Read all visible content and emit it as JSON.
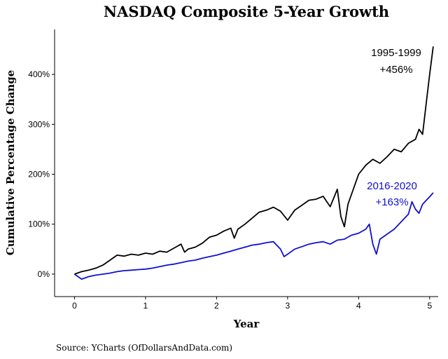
{
  "chart_data": {
    "type": "line",
    "title": "NASDAQ Composite 5-Year Growth",
    "xlabel": "Year",
    "ylabel": "Cumulative Percentage Change",
    "xlim": [
      -0.28,
      5.12
    ],
    "ylim": [
      -45,
      490
    ],
    "x_ticks": [
      0,
      1,
      2,
      3,
      4,
      5
    ],
    "x_tick_labels": [
      "0",
      "1",
      "2",
      "3",
      "4",
      "5"
    ],
    "y_ticks": [
      0,
      100,
      200,
      300,
      400
    ],
    "y_tick_labels": [
      "0%",
      "100%",
      "200%",
      "300%",
      "400%"
    ],
    "grid": false,
    "series": [
      {
        "name": "1995-1999",
        "color": "#000000",
        "x": [
          0,
          0.1,
          0.2,
          0.3,
          0.4,
          0.5,
          0.6,
          0.7,
          0.8,
          0.9,
          1.0,
          1.1,
          1.2,
          1.3,
          1.4,
          1.5,
          1.55,
          1.6,
          1.7,
          1.8,
          1.9,
          2.0,
          2.1,
          2.2,
          2.25,
          2.3,
          2.4,
          2.5,
          2.6,
          2.7,
          2.8,
          2.9,
          3.0,
          3.1,
          3.2,
          3.3,
          3.4,
          3.5,
          3.6,
          3.7,
          3.75,
          3.8,
          3.85,
          3.9,
          4.0,
          4.1,
          4.2,
          4.3,
          4.4,
          4.5,
          4.6,
          4.7,
          4.8,
          4.85,
          4.9,
          4.95,
          5.0,
          5.05
        ],
        "values": [
          0,
          5,
          8,
          12,
          18,
          28,
          38,
          36,
          40,
          38,
          42,
          40,
          46,
          44,
          52,
          60,
          44,
          50,
          54,
          62,
          74,
          78,
          86,
          92,
          72,
          90,
          100,
          112,
          124,
          128,
          134,
          126,
          108,
          128,
          138,
          148,
          150,
          156,
          135,
          170,
          115,
          95,
          140,
          160,
          200,
          218,
          230,
          222,
          235,
          250,
          245,
          262,
          270,
          290,
          280,
          340,
          400,
          456
        ]
      },
      {
        "name": "2016-2020",
        "color": "#1010d0",
        "x": [
          0,
          0.05,
          0.1,
          0.2,
          0.3,
          0.4,
          0.5,
          0.6,
          0.7,
          0.8,
          0.9,
          1.0,
          1.1,
          1.2,
          1.3,
          1.4,
          1.5,
          1.6,
          1.7,
          1.8,
          1.9,
          2.0,
          2.1,
          2.2,
          2.3,
          2.4,
          2.5,
          2.6,
          2.7,
          2.8,
          2.9,
          2.95,
          3.0,
          3.1,
          3.2,
          3.3,
          3.4,
          3.5,
          3.6,
          3.7,
          3.8,
          3.9,
          4.0,
          4.1,
          4.15,
          4.2,
          4.25,
          4.3,
          4.4,
          4.5,
          4.6,
          4.7,
          4.75,
          4.8,
          4.85,
          4.9,
          5.0,
          5.05
        ],
        "values": [
          0,
          -5,
          -10,
          -5,
          -2,
          0,
          2,
          5,
          7,
          8,
          9,
          10,
          12,
          15,
          18,
          20,
          23,
          26,
          28,
          32,
          35,
          38,
          42,
          46,
          50,
          54,
          58,
          60,
          63,
          65,
          50,
          35,
          40,
          50,
          55,
          60,
          63,
          65,
          60,
          68,
          70,
          78,
          82,
          90,
          100,
          60,
          40,
          70,
          80,
          90,
          105,
          120,
          145,
          130,
          122,
          140,
          155,
          163
        ]
      }
    ],
    "annotations": [
      {
        "series": 0,
        "line1": "1995-1999",
        "line2": "+456%",
        "color": "#000000"
      },
      {
        "series": 1,
        "line1": "2016-2020",
        "line2": "+163%",
        "color": "#1010d0"
      }
    ]
  },
  "source": "Source:  YCharts (OfDollarsAndData.com)"
}
